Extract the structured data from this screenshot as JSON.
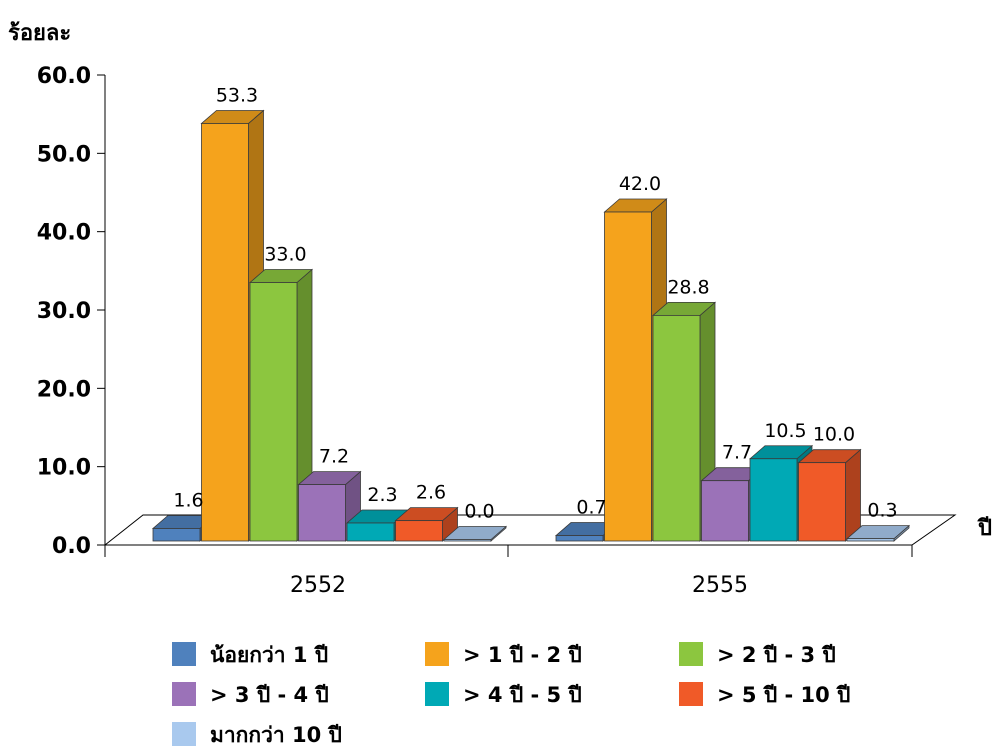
{
  "chart_data": {
    "type": "bar",
    "ylabel": "ร้อยละ",
    "xlabel": "ปี",
    "ylim": [
      0,
      60
    ],
    "yticks": [
      "0.0",
      "10.0",
      "20.0",
      "30.0",
      "40.0",
      "50.0",
      "60.0"
    ],
    "categories": [
      "2552",
      "2555"
    ],
    "series": [
      {
        "name": "น้อยกว่า 1 ปี",
        "values": [
          1.6,
          0.7
        ],
        "labels": [
          "1.6",
          "0.7"
        ],
        "color": "#4F81BD"
      },
      {
        "name": "> 1 ปี - 2 ปี",
        "values": [
          53.3,
          42.0
        ],
        "labels": [
          "53.3",
          "42.0"
        ],
        "color": "#F5A31C"
      },
      {
        "name": "> 2 ปี - 3 ปี",
        "values": [
          33.0,
          28.8
        ],
        "labels": [
          "33.0",
          "28.8"
        ],
        "color": "#8CC63F"
      },
      {
        "name": "> 3 ปี - 4 ปี",
        "values": [
          7.2,
          7.7
        ],
        "labels": [
          "7.2",
          "7.7"
        ],
        "color": "#9B72B8"
      },
      {
        "name": "> 4 ปี - 5 ปี",
        "values": [
          2.3,
          10.5
        ],
        "labels": [
          "2.3",
          "10.5"
        ],
        "color": "#00A9B5"
      },
      {
        "name": "> 5 ปี - 10 ปี",
        "values": [
          2.6,
          10.0
        ],
        "labels": [
          "2.6",
          "10.0"
        ],
        "color": "#F05A28"
      },
      {
        "name": "มากกว่า 10 ปี",
        "values": [
          0.0,
          0.3
        ],
        "labels": [
          "0.0",
          "0.3"
        ],
        "color": "#A9C9EE"
      }
    ],
    "grid": false,
    "legend": "bottom",
    "style": "3d-clustered-column"
  }
}
